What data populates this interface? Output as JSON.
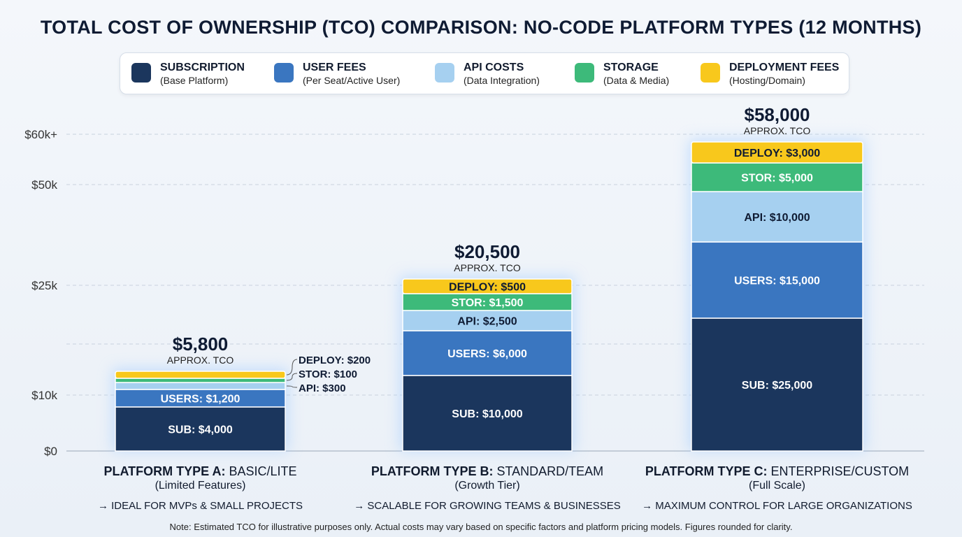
{
  "chart_data": {
    "type": "bar",
    "stacked": true,
    "title": "TOTAL COST OF OWNERSHIP (TCO) COMPARISON: NO-CODE PLATFORM TYPES (12 MONTHS)",
    "y_ticks": [
      "$0",
      "$10k",
      "$25k",
      "$50k",
      "$60k+"
    ],
    "grid": true,
    "legend_placement": "top",
    "legend": [
      {
        "name": "SUBSCRIPTION",
        "sub": "(Base Platform)",
        "color": "#1b365d"
      },
      {
        "name": "USER FEES",
        "sub": "(Per Seat/Active User)",
        "color": "#3a76c0"
      },
      {
        "name": "API COSTS",
        "sub": "(Data Integration)",
        "color": "#a6d0f0"
      },
      {
        "name": "STORAGE",
        "sub": "(Data & Media)",
        "color": "#3dba7a"
      },
      {
        "name": "DEPLOYMENT FEES",
        "sub": "(Hosting/Domain)",
        "color": "#f8c81c"
      }
    ],
    "categories": [
      {
        "bold": "PLATFORM TYPE A:",
        "rest": " BASIC/LITE",
        "sub": "(Limited Features)",
        "desc": "→ IDEAL FOR MVPs & SMALL PROJECTS",
        "total": "$5,800",
        "total_label": "APPROX. TCO"
      },
      {
        "bold": "PLATFORM TYPE B:",
        "rest": " STANDARD/TEAM",
        "sub": "(Growth Tier)",
        "desc": "→ SCALABLE FOR GROWING TEAMS & BUSINESSES",
        "total": "$20,500",
        "total_label": "APPROX. TCO"
      },
      {
        "bold": "PLATFORM TYPE C:",
        "rest": " ENTERPRISE/CUSTOM",
        "sub": "(Full Scale)",
        "desc": "→ MAXIMUM CONTROL FOR LARGE ORGANIZATIONS",
        "total": "$58,000",
        "total_label": "APPROX. TCO"
      }
    ],
    "series": [
      {
        "name": "SUBSCRIPTION",
        "values": [
          4000,
          10000,
          25000
        ],
        "labels": [
          "SUB: $4,000",
          "SUB: $10,000",
          "SUB: $25,000"
        ]
      },
      {
        "name": "USER FEES",
        "values": [
          1200,
          6000,
          15000
        ],
        "labels": [
          "USERS: $1,200",
          "USERS: $6,000",
          "USERS: $15,000"
        ]
      },
      {
        "name": "API COSTS",
        "values": [
          300,
          2500,
          10000
        ],
        "labels": [
          "API: $300",
          "API: $2,500",
          "API: $10,000"
        ]
      },
      {
        "name": "STORAGE",
        "values": [
          100,
          1500,
          5000
        ],
        "labels": [
          "STOR: $100",
          "STOR: $1,500",
          "STOR: $5,000"
        ]
      },
      {
        "name": "DEPLOYMENT FEES",
        "values": [
          200,
          500,
          3000
        ],
        "labels": [
          "DEPLOY: $200",
          "DEPLOY: $500",
          "DEPLOY: $3,000"
        ]
      }
    ],
    "note": "Note: Estimated TCO for illustrative purposes only. Actual costs may vary based on specific factors and platform pricing models. Figures rounded for clarity."
  }
}
